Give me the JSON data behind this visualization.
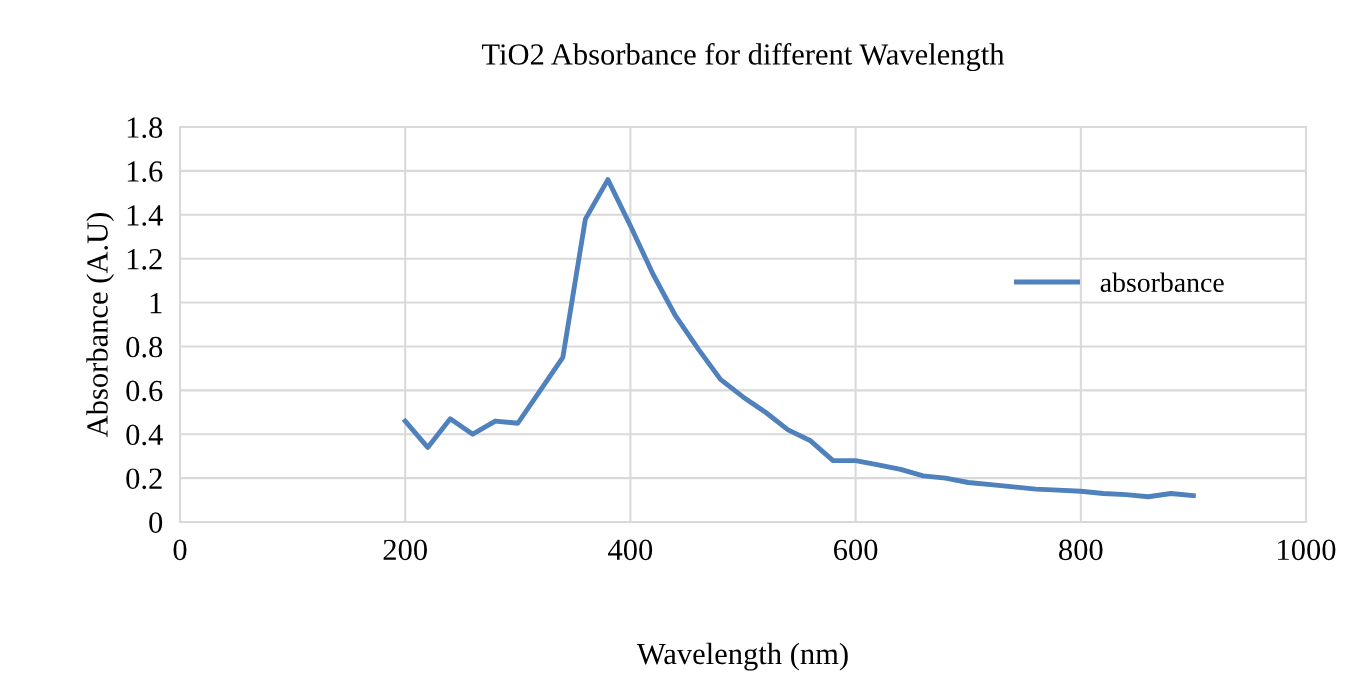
{
  "chart_data": {
    "type": "line",
    "title": "TiO2 Absorbance for different Wavelength",
    "xlabel": "Wavelength (nm)",
    "ylabel": "Absorbance (A.U)",
    "x": [
      200,
      220,
      240,
      260,
      280,
      300,
      320,
      340,
      360,
      380,
      400,
      420,
      440,
      460,
      480,
      500,
      520,
      540,
      560,
      580,
      600,
      620,
      640,
      660,
      680,
      700,
      720,
      740,
      760,
      780,
      800,
      820,
      840,
      860,
      880,
      900
    ],
    "series": [
      {
        "name": "absorbance",
        "color": "#4f81bd",
        "values": [
          0.46,
          0.34,
          0.47,
          0.4,
          0.46,
          0.45,
          0.6,
          0.75,
          1.38,
          1.56,
          1.35,
          1.13,
          0.94,
          0.79,
          0.65,
          0.57,
          0.5,
          0.42,
          0.37,
          0.28,
          0.28,
          0.26,
          0.24,
          0.21,
          0.2,
          0.18,
          0.17,
          0.16,
          0.15,
          0.145,
          0.14,
          0.13,
          0.125,
          0.115,
          0.13,
          0.12
        ]
      }
    ],
    "xlim": [
      0,
      1000
    ],
    "xticks": [
      0,
      200,
      400,
      600,
      800,
      1000
    ],
    "ylim": [
      0,
      1.8
    ],
    "yticks": [
      0,
      0.2,
      0.4,
      0.6,
      0.8,
      1,
      1.2,
      1.4,
      1.6,
      1.8
    ],
    "grid": true,
    "legend": "right",
    "marker": "none",
    "line_style": "solid"
  }
}
